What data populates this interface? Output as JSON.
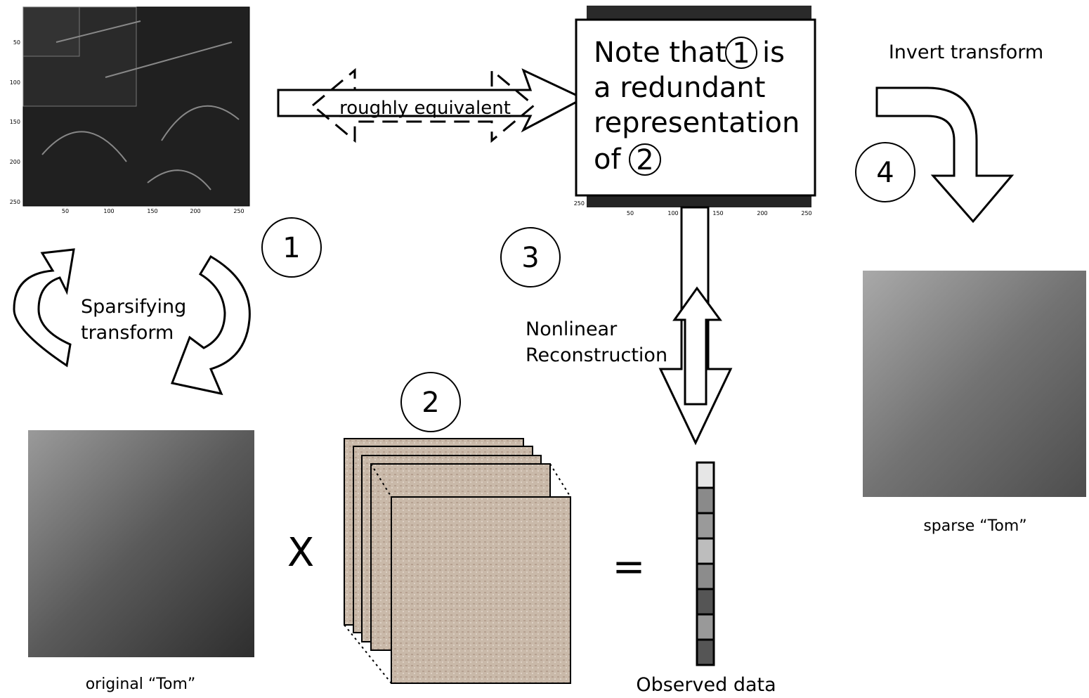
{
  "wavelet_axes": {
    "y": [
      "50",
      "100",
      "150",
      "200",
      "250"
    ],
    "x": [
      "50",
      "100",
      "150",
      "200",
      "250"
    ]
  },
  "wavelet_strip_axes": {
    "y": [
      "250"
    ],
    "x": [
      "50",
      "100",
      "150",
      "200",
      "250"
    ]
  },
  "equivalence": {
    "label": "roughly equivalent"
  },
  "note": {
    "line1a": "Note that",
    "circle1": "1",
    "line1b": "is",
    "line2": "a redundant",
    "line3": "representation",
    "line4a": "of",
    "circle2": "2"
  },
  "invert": {
    "label": "Invert transform"
  },
  "sparsifying": {
    "line1": "Sparsifying",
    "line2": "transform"
  },
  "reconstruction": {
    "line1": "Nonlinear",
    "line2": "Reconstruction"
  },
  "steps": [
    "1",
    "2",
    "3",
    "4"
  ],
  "operators": {
    "times": "X",
    "equals": "="
  },
  "captions": {
    "original": "original “Tom”",
    "sparse": "sparse “Tom”",
    "observed": "Observed data"
  }
}
